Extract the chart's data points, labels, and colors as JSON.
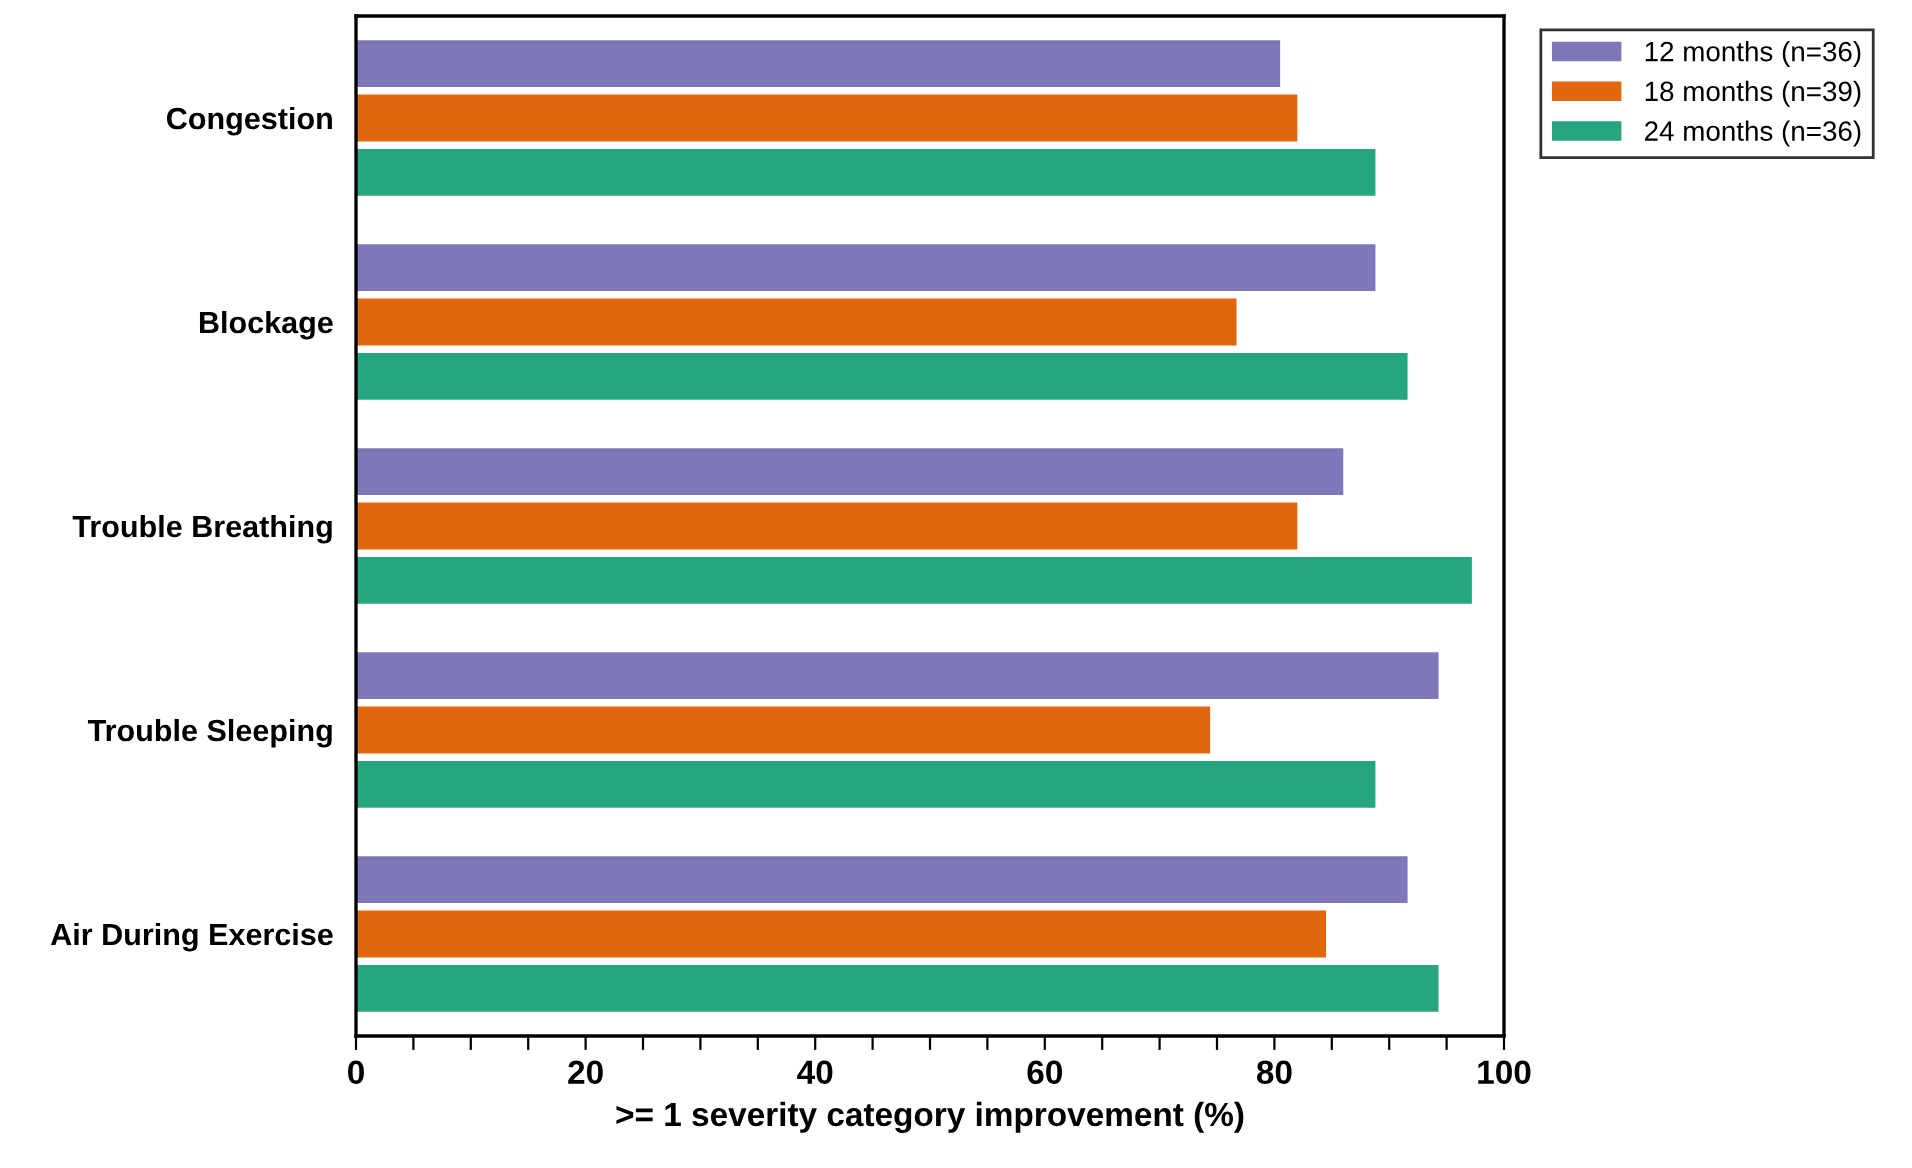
{
  "chart_data": {
    "type": "bar",
    "orientation": "horizontal",
    "xlabel": ">= 1 severity category improvement (%)",
    "categories": [
      "Congestion",
      "Blockage",
      "Trouble Breathing",
      "Trouble Sleeping",
      "Air During Exercise"
    ],
    "series": [
      {
        "name": "12 months (n=36)",
        "color": "#7f78b8",
        "values": [
          80.5,
          88.8,
          86,
          94.3,
          91.6
        ]
      },
      {
        "name": "18 months (n=39)",
        "color": "#e0670e",
        "values": [
          82,
          76.7,
          82,
          74.4,
          84.5
        ]
      },
      {
        "name": "24 months (n=36)",
        "color": "#26a67e",
        "values": [
          88.8,
          91.6,
          97.2,
          88.8,
          94.3
        ]
      }
    ],
    "xlim": [
      0,
      100
    ],
    "xticks": [
      0,
      {
        "value": 5,
        "label": null
      },
      {
        "value": 10,
        "label": null
      },
      {
        "value": 15,
        "label": null
      },
      20,
      {
        "value": 25,
        "label": null
      },
      {
        "value": 30,
        "label": null
      },
      {
        "value": 35,
        "label": null
      },
      40,
      {
        "value": 45,
        "label": null
      },
      {
        "value": 50,
        "label": null
      },
      {
        "value": 55,
        "label": null
      },
      60,
      {
        "value": 65,
        "label": null
      },
      {
        "value": 70,
        "label": null
      },
      {
        "value": 75,
        "label": null
      },
      80,
      {
        "value": 85,
        "label": null
      },
      {
        "value": 90,
        "label": null
      },
      {
        "value": 95,
        "label": null
      },
      100
    ],
    "grid": false,
    "legend": "top right"
  }
}
